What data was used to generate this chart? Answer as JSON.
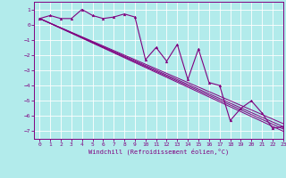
{
  "background_color": "#b2ebeb",
  "line_color": "#800080",
  "grid_color": "#ffffff",
  "xlim": [
    -0.5,
    23
  ],
  "ylim": [
    -7.5,
    1.5
  ],
  "yticks": [
    1,
    0,
    -1,
    -2,
    -3,
    -4,
    -5,
    -6,
    -7
  ],
  "xticks": [
    0,
    1,
    2,
    3,
    4,
    5,
    6,
    7,
    8,
    9,
    10,
    11,
    12,
    13,
    14,
    15,
    16,
    17,
    18,
    19,
    20,
    21,
    22,
    23
  ],
  "xlabel": "Windchill (Refroidissement éolien,°C)",
  "jagged_line": [
    0.4,
    0.6,
    0.4,
    0.4,
    1.0,
    0.6,
    0.4,
    0.5,
    0.7,
    0.5,
    -2.3,
    -1.5,
    -2.4,
    -1.3,
    -3.6,
    -1.6,
    -3.8,
    -4.0,
    -6.3,
    -5.5,
    -5.0,
    -5.8,
    -6.8,
    -6.7
  ],
  "straight_lines": [
    {
      "x0": 0,
      "y0": 0.4,
      "x1": 23,
      "y1": -6.5
    },
    {
      "x0": 0,
      "y0": 0.4,
      "x1": 23,
      "y1": -6.7
    },
    {
      "x0": 0,
      "y0": 0.4,
      "x1": 23,
      "y1": -6.85
    },
    {
      "x0": 0,
      "y0": 0.4,
      "x1": 23,
      "y1": -7.0
    }
  ]
}
